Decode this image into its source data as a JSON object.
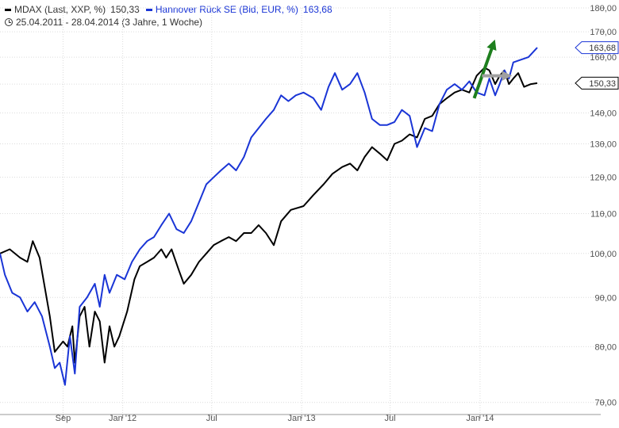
{
  "legend": {
    "series1_label": "MDAX (Last, XXP, %)",
    "series1_value": "150,33",
    "series1_color": "#000000",
    "series2_label": "Hannover Rück SE (Bid, EUR, %)",
    "series2_value": "163,68",
    "series2_color": "#1a35d6",
    "period": "25.04.2011 - 28.04.2014 (3 Jahre, 1 Woche)"
  },
  "chart_data": {
    "type": "line",
    "y_scale": "log",
    "ylim": [
      68,
      180
    ],
    "y_ticks": [
      {
        "value": 180,
        "label": "180,00"
      },
      {
        "value": 170,
        "label": "170,00"
      },
      {
        "value": 160,
        "label": "160,00"
      },
      {
        "value": 150,
        "label": "150,00"
      },
      {
        "value": 140,
        "label": "140,00"
      },
      {
        "value": 130,
        "label": "130,00"
      },
      {
        "value": 120,
        "label": "120,00"
      },
      {
        "value": 110,
        "label": "110,00"
      },
      {
        "value": 100,
        "label": "100,00"
      },
      {
        "value": 90,
        "label": "90,00"
      },
      {
        "value": 80,
        "label": "80,00"
      },
      {
        "value": 70,
        "label": "70,00"
      }
    ],
    "xlim": [
      "2011-04-25",
      "2014-04-28"
    ],
    "x_ticks": [
      {
        "date": "2011-09-01",
        "label": "Sep"
      },
      {
        "date": "2012-01-01",
        "label": "Jan '12"
      },
      {
        "date": "2012-07-01",
        "label": "Jul"
      },
      {
        "date": "2013-01-01",
        "label": "Jan '13"
      },
      {
        "date": "2013-07-01",
        "label": "Jul"
      },
      {
        "date": "2014-01-01",
        "label": "Jan '14"
      }
    ],
    "grid": true,
    "series": [
      {
        "name": "MDAX (Last, XXP, %)",
        "color": "#000000",
        "last_label": "150,33",
        "points": [
          [
            "2011-04-25",
            100
          ],
          [
            "2011-05-15",
            101
          ],
          [
            "2011-06-05",
            99
          ],
          [
            "2011-06-20",
            98
          ],
          [
            "2011-07-01",
            103
          ],
          [
            "2011-07-15",
            99
          ],
          [
            "2011-08-05",
            86
          ],
          [
            "2011-08-15",
            79
          ],
          [
            "2011-09-01",
            81
          ],
          [
            "2011-09-10",
            80
          ],
          [
            "2011-09-20",
            84
          ],
          [
            "2011-09-25",
            77
          ],
          [
            "2011-10-05",
            86
          ],
          [
            "2011-10-15",
            88
          ],
          [
            "2011-10-25",
            80
          ],
          [
            "2011-11-05",
            87
          ],
          [
            "2011-11-15",
            85
          ],
          [
            "2011-11-25",
            77
          ],
          [
            "2011-12-05",
            84
          ],
          [
            "2011-12-15",
            80
          ],
          [
            "2011-12-25",
            82
          ],
          [
            "2012-01-10",
            87
          ],
          [
            "2012-01-25",
            94
          ],
          [
            "2012-02-05",
            97
          ],
          [
            "2012-02-20",
            98
          ],
          [
            "2012-03-05",
            99
          ],
          [
            "2012-03-20",
            101
          ],
          [
            "2012-03-30",
            99
          ],
          [
            "2012-04-10",
            101
          ],
          [
            "2012-04-25",
            96
          ],
          [
            "2012-05-05",
            93
          ],
          [
            "2012-05-20",
            95
          ],
          [
            "2012-06-05",
            98
          ],
          [
            "2012-06-20",
            100
          ],
          [
            "2012-07-05",
            102
          ],
          [
            "2012-07-20",
            103
          ],
          [
            "2012-08-05",
            104
          ],
          [
            "2012-08-20",
            103
          ],
          [
            "2012-09-05",
            105
          ],
          [
            "2012-09-20",
            105
          ],
          [
            "2012-10-05",
            107
          ],
          [
            "2012-10-20",
            105
          ],
          [
            "2012-11-05",
            102
          ],
          [
            "2012-11-20",
            108
          ],
          [
            "2012-12-10",
            111
          ],
          [
            "2013-01-05",
            112
          ],
          [
            "2013-01-25",
            115
          ],
          [
            "2013-02-15",
            118
          ],
          [
            "2013-03-05",
            121
          ],
          [
            "2013-03-25",
            123
          ],
          [
            "2013-04-10",
            124
          ],
          [
            "2013-04-25",
            122
          ],
          [
            "2013-05-10",
            126
          ],
          [
            "2013-05-25",
            129
          ],
          [
            "2013-06-10",
            127
          ],
          [
            "2013-06-25",
            125
          ],
          [
            "2013-07-10",
            130
          ],
          [
            "2013-07-25",
            131
          ],
          [
            "2013-08-10",
            133
          ],
          [
            "2013-08-25",
            132
          ],
          [
            "2013-09-10",
            138
          ],
          [
            "2013-09-25",
            139
          ],
          [
            "2013-10-10",
            143
          ],
          [
            "2013-10-25",
            145
          ],
          [
            "2013-11-10",
            147
          ],
          [
            "2013-11-25",
            148
          ],
          [
            "2013-12-10",
            147
          ],
          [
            "2013-12-25",
            153
          ],
          [
            "2014-01-10",
            156
          ],
          [
            "2014-01-20",
            155
          ],
          [
            "2014-02-01",
            150
          ],
          [
            "2014-02-10",
            153
          ],
          [
            "2014-02-20",
            155
          ],
          [
            "2014-03-01",
            150
          ],
          [
            "2014-03-10",
            152
          ],
          [
            "2014-03-20",
            154
          ],
          [
            "2014-04-01",
            149
          ],
          [
            "2014-04-15",
            150
          ],
          [
            "2014-04-28",
            150.33
          ]
        ]
      },
      {
        "name": "Hannover Rück SE (Bid, EUR, %)",
        "color": "#1a35d6",
        "last_label": "163,68",
        "points": [
          [
            "2011-04-25",
            100
          ],
          [
            "2011-05-05",
            95
          ],
          [
            "2011-05-20",
            91
          ],
          [
            "2011-06-05",
            90
          ],
          [
            "2011-06-20",
            87
          ],
          [
            "2011-07-05",
            89
          ],
          [
            "2011-07-20",
            86
          ],
          [
            "2011-08-05",
            80
          ],
          [
            "2011-08-15",
            76
          ],
          [
            "2011-08-25",
            77
          ],
          [
            "2011-09-05",
            73
          ],
          [
            "2011-09-15",
            82
          ],
          [
            "2011-09-25",
            75
          ],
          [
            "2011-10-05",
            88
          ],
          [
            "2011-10-20",
            90
          ],
          [
            "2011-11-05",
            93
          ],
          [
            "2011-11-15",
            88
          ],
          [
            "2011-11-25",
            95
          ],
          [
            "2011-12-05",
            91
          ],
          [
            "2011-12-20",
            95
          ],
          [
            "2012-01-05",
            94
          ],
          [
            "2012-01-20",
            98
          ],
          [
            "2012-02-05",
            101
          ],
          [
            "2012-02-20",
            103
          ],
          [
            "2012-03-05",
            104
          ],
          [
            "2012-03-20",
            107
          ],
          [
            "2012-04-05",
            110
          ],
          [
            "2012-04-20",
            106
          ],
          [
            "2012-05-05",
            105
          ],
          [
            "2012-05-20",
            108
          ],
          [
            "2012-06-05",
            113
          ],
          [
            "2012-06-20",
            118
          ],
          [
            "2012-07-05",
            120
          ],
          [
            "2012-07-20",
            122
          ],
          [
            "2012-08-05",
            124
          ],
          [
            "2012-08-20",
            122
          ],
          [
            "2012-09-05",
            126
          ],
          [
            "2012-09-20",
            132
          ],
          [
            "2012-10-05",
            135
          ],
          [
            "2012-10-20",
            138
          ],
          [
            "2012-11-05",
            141
          ],
          [
            "2012-11-20",
            146
          ],
          [
            "2012-12-05",
            144
          ],
          [
            "2012-12-20",
            146
          ],
          [
            "2013-01-05",
            147
          ],
          [
            "2013-01-25",
            145
          ],
          [
            "2013-02-10",
            141
          ],
          [
            "2013-02-25",
            149
          ],
          [
            "2013-03-10",
            154
          ],
          [
            "2013-03-25",
            148
          ],
          [
            "2013-04-10",
            150
          ],
          [
            "2013-04-25",
            154
          ],
          [
            "2013-05-10",
            147
          ],
          [
            "2013-05-25",
            138
          ],
          [
            "2013-06-10",
            136
          ],
          [
            "2013-06-25",
            136
          ],
          [
            "2013-07-10",
            137
          ],
          [
            "2013-07-25",
            141
          ],
          [
            "2013-08-10",
            139
          ],
          [
            "2013-08-25",
            129
          ],
          [
            "2013-09-10",
            135
          ],
          [
            "2013-09-25",
            134
          ],
          [
            "2013-10-10",
            143
          ],
          [
            "2013-10-25",
            148
          ],
          [
            "2013-11-10",
            150
          ],
          [
            "2013-11-25",
            148
          ],
          [
            "2013-12-10",
            151
          ],
          [
            "2013-12-25",
            147
          ],
          [
            "2014-01-10",
            146
          ],
          [
            "2014-01-20",
            152
          ],
          [
            "2014-02-01",
            146
          ],
          [
            "2014-02-10",
            150
          ],
          [
            "2014-02-20",
            155
          ],
          [
            "2014-03-01",
            152
          ],
          [
            "2014-03-10",
            158
          ],
          [
            "2014-03-25",
            159
          ],
          [
            "2014-04-10",
            160
          ],
          [
            "2014-04-28",
            163.68
          ]
        ]
      }
    ],
    "annotations": [
      {
        "type": "arrow",
        "color": "#1e7f1e",
        "from": [
          "2013-12-20",
          145
        ],
        "to": [
          "2014-01-28",
          165
        ]
      },
      {
        "type": "arrow",
        "color": "#a0a0a0",
        "from": [
          "2014-01-05",
          153
        ],
        "to": [
          "2014-02-25",
          153
        ]
      }
    ]
  }
}
